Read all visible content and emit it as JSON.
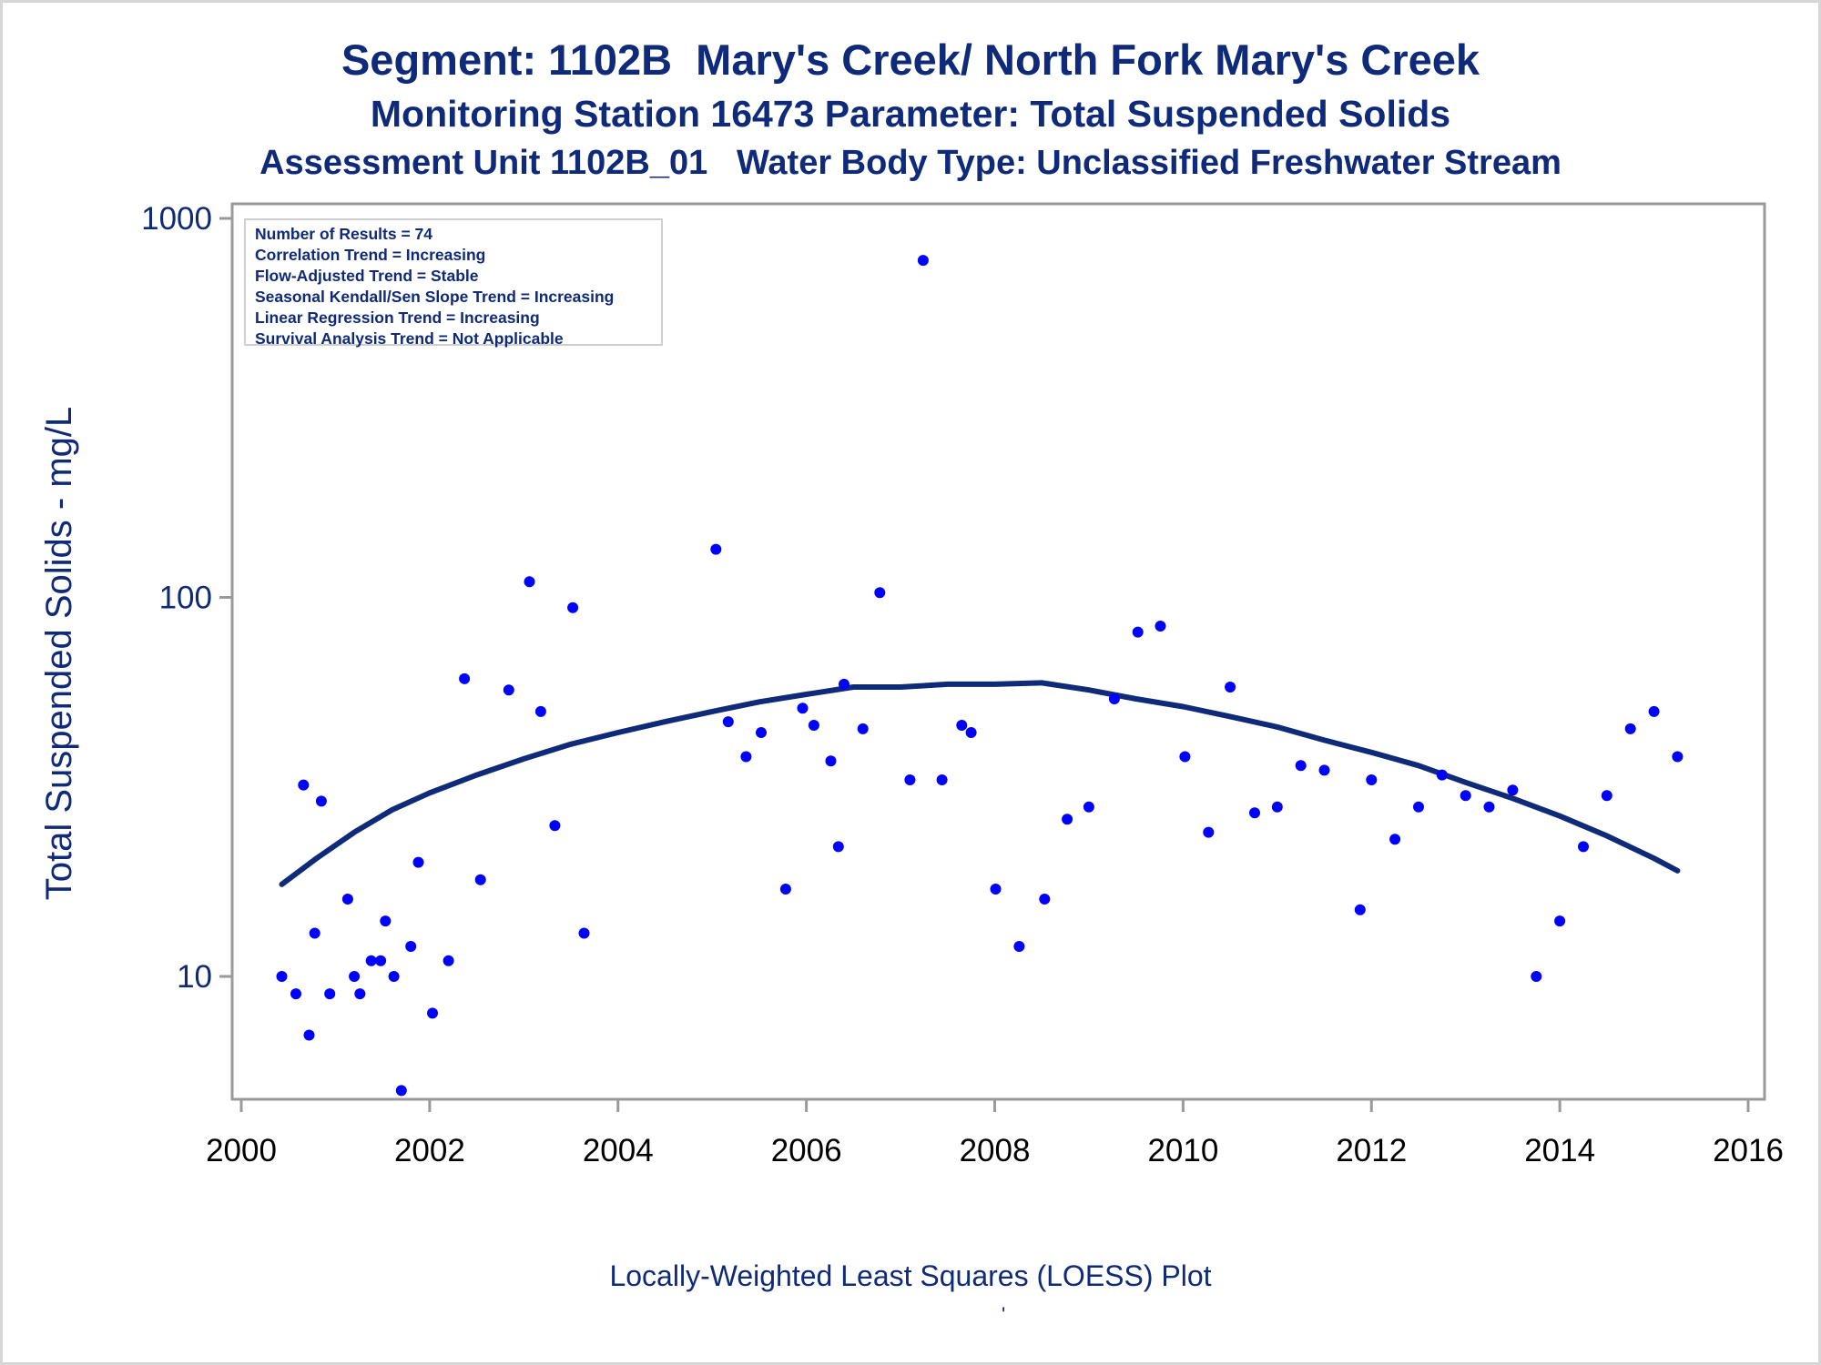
{
  "titles": {
    "line1": "Segment: 1102B  Mary's Creek/ North Fork Mary's Creek",
    "line2": "Monitoring Station 16473 Parameter: Total Suspended Solids",
    "line3": "Assessment Unit 1102B_01   Water Body Type: Unclassified Freshwater Stream"
  },
  "stats_box": [
    "Number of Results = 74",
    "Correlation Trend = Increasing",
    "Flow-Adjusted Trend = Stable",
    "Seasonal Kendall/Sen Slope Trend = Increasing",
    "Linear Regression Trend = Increasing",
    "Survival Analysis Trend = Not Applicable"
  ],
  "footnote": "Locally-Weighted Least Squares (LOESS) Plot",
  "footnote_mark": "'",
  "colors": {
    "text": "#0f2a78",
    "points": "#0000ff",
    "loess_line": "#0f2a78",
    "axis": "#9a9a9a"
  },
  "chart_data": {
    "type": "scatter",
    "ylabel": "Total Suspended Solids - mg/L",
    "xlabel": "",
    "x_scale": "linear (year)",
    "y_scale": "log",
    "xlim": [
      2000,
      2016
    ],
    "ylim": [
      5,
      1000
    ],
    "x_ticks": [
      "2000",
      "2002",
      "2004",
      "2006",
      "2008",
      "2010",
      "2012",
      "2014",
      "2016"
    ],
    "y_ticks": [
      "10",
      "100",
      "1000"
    ],
    "grid": false,
    "series": [
      {
        "name": "",
        "type": "scatter",
        "points": [
          [
            2000.43,
            10
          ],
          [
            2000.58,
            9
          ],
          [
            2000.66,
            32
          ],
          [
            2000.72,
            7
          ],
          [
            2000.78,
            13
          ],
          [
            2000.85,
            29
          ],
          [
            2000.94,
            9
          ],
          [
            2001.13,
            16
          ],
          [
            2001.2,
            10
          ],
          [
            2001.26,
            9
          ],
          [
            2001.38,
            11
          ],
          [
            2001.48,
            11
          ],
          [
            2001.53,
            14
          ],
          [
            2001.62,
            10
          ],
          [
            2001.7,
            5
          ],
          [
            2001.8,
            12
          ],
          [
            2001.88,
            20
          ],
          [
            2002.03,
            8
          ],
          [
            2002.2,
            11
          ],
          [
            2002.37,
            61
          ],
          [
            2002.54,
            18
          ],
          [
            2002.84,
            57
          ],
          [
            2003.06,
            110
          ],
          [
            2003.18,
            50
          ],
          [
            2003.33,
            25
          ],
          [
            2003.52,
            94
          ],
          [
            2003.64,
            13
          ],
          [
            2005.04,
            134
          ],
          [
            2005.17,
            47
          ],
          [
            2005.36,
            38
          ],
          [
            2005.52,
            44
          ],
          [
            2005.78,
            17
          ],
          [
            2005.96,
            51
          ],
          [
            2006.08,
            46
          ],
          [
            2006.26,
            37
          ],
          [
            2006.34,
            22
          ],
          [
            2006.4,
            59
          ],
          [
            2006.6,
            45
          ],
          [
            2006.78,
            103
          ],
          [
            2007.1,
            33
          ],
          [
            2007.24,
            775
          ],
          [
            2007.44,
            33
          ],
          [
            2007.65,
            46
          ],
          [
            2007.75,
            44
          ],
          [
            2008.01,
            17
          ],
          [
            2008.26,
            12
          ],
          [
            2008.53,
            16
          ],
          [
            2008.77,
            26
          ],
          [
            2009.0,
            28
          ],
          [
            2009.27,
            54
          ],
          [
            2009.52,
            81
          ],
          [
            2009.76,
            84
          ],
          [
            2010.02,
            38
          ],
          [
            2010.27,
            24
          ],
          [
            2010.5,
            58
          ],
          [
            2010.76,
            27
          ],
          [
            2011.0,
            28
          ],
          [
            2011.25,
            36
          ],
          [
            2011.5,
            35
          ],
          [
            2011.88,
            15
          ],
          [
            2012.0,
            33
          ],
          [
            2012.25,
            23
          ],
          [
            2012.5,
            28
          ],
          [
            2012.75,
            34
          ],
          [
            2013.0,
            30
          ],
          [
            2013.25,
            28
          ],
          [
            2013.5,
            31
          ],
          [
            2013.75,
            10
          ],
          [
            2014.0,
            14
          ],
          [
            2014.25,
            22
          ],
          [
            2014.5,
            30
          ],
          [
            2014.75,
            45
          ],
          [
            2015.0,
            50
          ],
          [
            2015.25,
            38
          ]
        ]
      },
      {
        "name": "",
        "type": "line",
        "points": [
          [
            2000.43,
            17.5
          ],
          [
            2000.8,
            20.5
          ],
          [
            2001.2,
            24
          ],
          [
            2001.6,
            27.5
          ],
          [
            2002.0,
            30.5
          ],
          [
            2002.5,
            34
          ],
          [
            2003.0,
            37.5
          ],
          [
            2003.5,
            41
          ],
          [
            2004.0,
            44
          ],
          [
            2004.5,
            47
          ],
          [
            2005.0,
            50
          ],
          [
            2005.5,
            53
          ],
          [
            2006.0,
            55.5
          ],
          [
            2006.5,
            58
          ],
          [
            2007.0,
            58
          ],
          [
            2007.5,
            59
          ],
          [
            2008.0,
            59
          ],
          [
            2008.5,
            59.5
          ],
          [
            2009.0,
            57
          ],
          [
            2009.5,
            54
          ],
          [
            2010.0,
            51.5
          ],
          [
            2010.5,
            48.5
          ],
          [
            2011.0,
            45.5
          ],
          [
            2011.5,
            42
          ],
          [
            2012.0,
            39
          ],
          [
            2012.5,
            36
          ],
          [
            2013.0,
            32.5
          ],
          [
            2013.5,
            29.5
          ],
          [
            2014.0,
            26.5
          ],
          [
            2014.5,
            23.5
          ],
          [
            2015.0,
            20.5
          ],
          [
            2015.25,
            19
          ]
        ]
      }
    ]
  }
}
